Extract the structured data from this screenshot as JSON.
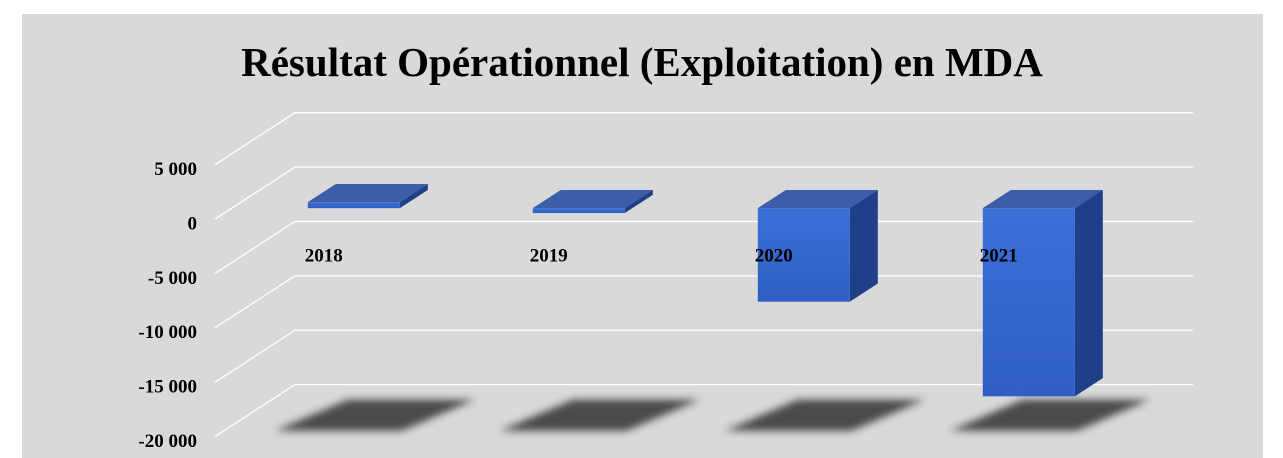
{
  "chart_data": {
    "type": "bar3d",
    "title": "Résultat Opérationnel (Exploitation) en MDA",
    "categories": [
      "2018",
      "2019",
      "2020",
      "2021"
    ],
    "values": [
      550,
      -450,
      -8600,
      -17300
    ],
    "color": "#3a6bd0",
    "ylim": [
      -20000,
      5000
    ],
    "yticks": [
      {
        "value": 5000,
        "label": "5 000"
      },
      0,
      {
        "value": -5000,
        "label": "-5 000"
      },
      {
        "value": -10000,
        "label": "-10 000"
      },
      {
        "value": -15000,
        "label": "-15 000"
      },
      {
        "value": -20000,
        "label": "-20 000"
      }
    ],
    "grid": true
  }
}
